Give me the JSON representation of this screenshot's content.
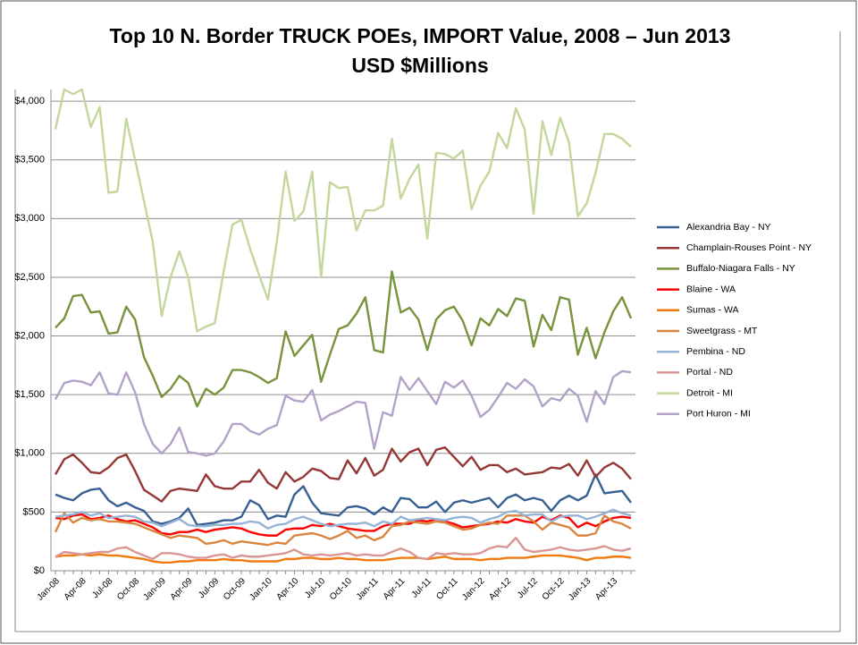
{
  "chart_data": {
    "type": "line",
    "title": "Top 10 N. Border TRUCK POEs,  IMPORT Value, 2008 – Jun 2013",
    "subtitle": "USD $Millions",
    "categories": [
      "Jan-08",
      null,
      null,
      "Apr-08",
      null,
      null,
      "Jul-08",
      null,
      null,
      "Oct-08",
      null,
      null,
      "Jan-09",
      null,
      null,
      "Apr-09",
      null,
      null,
      "Jul-09",
      null,
      null,
      "Oct-09",
      null,
      null,
      "Jan-10",
      null,
      null,
      "Apr-10",
      null,
      null,
      "Jul-10",
      null,
      null,
      "Oct-10",
      null,
      null,
      "Jan-11",
      null,
      null,
      "Apr-11",
      null,
      null,
      "Jul-11",
      null,
      null,
      "Oct-11",
      null,
      null,
      "Jan-12",
      null,
      null,
      "Apr-12",
      null,
      null,
      "Jul-12",
      null,
      null,
      "Oct-12",
      null,
      null,
      "Jan-13",
      null,
      null,
      "Apr-13",
      null,
      null
    ],
    "ylim": [
      0,
      4100
    ],
    "yticks": [
      {
        "value": 0,
        "label": "$0"
      },
      {
        "value": 500,
        "label": "$500"
      },
      {
        "value": 1000,
        "label": "$1,000"
      },
      {
        "value": 1500,
        "label": "$1,500"
      },
      {
        "value": 2000,
        "label": "$2,000"
      },
      {
        "value": 2500,
        "label": "$2,500"
      },
      {
        "value": 3000,
        "label": "$3,000"
      },
      {
        "value": 3500,
        "label": "$3,500"
      },
      {
        "value": 4000,
        "label": "$4,000"
      }
    ],
    "grid": true,
    "legend": "right",
    "series": [
      {
        "name": "Alexandria Bay - NY",
        "color": "#376092",
        "values": [
          650,
          620,
          600,
          660,
          690,
          700,
          600,
          550,
          580,
          540,
          510,
          420,
          400,
          420,
          450,
          530,
          390,
          400,
          410,
          430,
          430,
          460,
          600,
          560,
          440,
          470,
          460,
          650,
          720,
          580,
          490,
          480,
          470,
          540,
          550,
          530,
          480,
          540,
          500,
          620,
          610,
          540,
          540,
          590,
          500,
          580,
          600,
          580,
          600,
          620,
          540,
          620,
          650,
          600,
          620,
          600,
          510,
          600,
          640,
          600,
          640,
          820,
          660,
          670,
          680,
          580
        ]
      },
      {
        "name": "Champlain-Rouses Point - NY",
        "color": "#953735",
        "values": [
          820,
          950,
          990,
          920,
          840,
          830,
          880,
          960,
          990,
          850,
          690,
          640,
          590,
          680,
          700,
          690,
          680,
          820,
          720,
          700,
          700,
          760,
          760,
          860,
          750,
          700,
          840,
          760,
          800,
          870,
          850,
          790,
          780,
          940,
          830,
          960,
          810,
          860,
          1040,
          930,
          1010,
          1040,
          900,
          1030,
          1050,
          970,
          890,
          970,
          860,
          900,
          900,
          840,
          870,
          820,
          830,
          840,
          880,
          870,
          910,
          810,
          940,
          800,
          880,
          920,
          870,
          780
        ]
      },
      {
        "name": "Buffalo-Niagara Falls - NY",
        "color": "#77933c",
        "values": [
          2070,
          2150,
          2340,
          2350,
          2200,
          2210,
          2020,
          2030,
          2250,
          2140,
          1820,
          1660,
          1480,
          1550,
          1660,
          1600,
          1400,
          1550,
          1500,
          1560,
          1710,
          1710,
          1690,
          1650,
          1600,
          1640,
          2040,
          1830,
          1920,
          2010,
          1610,
          1840,
          2060,
          2090,
          2190,
          2330,
          1880,
          1860,
          2550,
          2200,
          2240,
          2140,
          1880,
          2140,
          2220,
          2250,
          2130,
          1920,
          2150,
          2090,
          2230,
          2170,
          2320,
          2300,
          1910,
          2180,
          2050,
          2330,
          2310,
          1840,
          2070,
          1810,
          2030,
          2210,
          2330,
          2150
        ]
      },
      {
        "name": "Blaine - WA",
        "color": "#ff0000",
        "values": [
          450,
          440,
          470,
          480,
          440,
          450,
          470,
          440,
          420,
          430,
          400,
          370,
          320,
          310,
          330,
          330,
          350,
          330,
          350,
          360,
          370,
          360,
          330,
          310,
          300,
          300,
          350,
          360,
          360,
          390,
          380,
          400,
          380,
          360,
          350,
          340,
          340,
          380,
          400,
          400,
          400,
          430,
          420,
          440,
          420,
          400,
          370,
          380,
          390,
          400,
          420,
          410,
          440,
          420,
          410,
          460,
          430,
          470,
          450,
          370,
          410,
          380,
          420,
          450,
          460,
          450
        ]
      },
      {
        "name": "Sumas - WA",
        "color": "#f07a10",
        "values": [
          120,
          130,
          130,
          140,
          130,
          140,
          130,
          130,
          120,
          110,
          100,
          80,
          70,
          70,
          80,
          80,
          90,
          90,
          90,
          100,
          90,
          90,
          80,
          80,
          80,
          80,
          100,
          100,
          110,
          110,
          100,
          100,
          110,
          100,
          100,
          90,
          90,
          90,
          100,
          110,
          110,
          110,
          100,
          110,
          120,
          100,
          100,
          100,
          90,
          100,
          100,
          110,
          110,
          110,
          120,
          130,
          130,
          130,
          120,
          110,
          90,
          110,
          110,
          120,
          120,
          110
        ]
      },
      {
        "name": "Sweetgrass - MT",
        "color": "#d9843f",
        "values": [
          330,
          490,
          410,
          450,
          430,
          440,
          420,
          420,
          410,
          400,
          370,
          340,
          310,
          280,
          300,
          290,
          280,
          230,
          240,
          260,
          230,
          250,
          240,
          230,
          220,
          240,
          230,
          300,
          310,
          320,
          300,
          270,
          300,
          340,
          280,
          300,
          260,
          290,
          380,
          390,
          420,
          410,
          400,
          420,
          410,
          380,
          350,
          360,
          390,
          410,
          400,
          470,
          470,
          470,
          420,
          350,
          410,
          390,
          370,
          300,
          300,
          320,
          470,
          420,
          400,
          360
        ]
      },
      {
        "name": "Pembina - ND",
        "color": "#95b3d7",
        "values": [
          460,
          470,
          480,
          500,
          470,
          490,
          450,
          460,
          470,
          460,
          420,
          410,
          380,
          410,
          440,
          390,
          380,
          380,
          390,
          390,
          400,
          400,
          420,
          410,
          360,
          390,
          400,
          440,
          460,
          430,
          400,
          380,
          390,
          400,
          400,
          410,
          380,
          420,
          400,
          460,
          430,
          440,
          450,
          440,
          430,
          450,
          460,
          450,
          410,
          440,
          460,
          500,
          510,
          470,
          480,
          480,
          420,
          460,
          470,
          470,
          440,
          460,
          490,
          520,
          490,
          470
        ]
      },
      {
        "name": "Portal - ND",
        "color": "#d99694",
        "values": [
          120,
          160,
          150,
          140,
          150,
          160,
          160,
          190,
          200,
          160,
          130,
          100,
          150,
          150,
          140,
          120,
          110,
          110,
          130,
          140,
          110,
          130,
          120,
          120,
          130,
          140,
          150,
          180,
          140,
          130,
          140,
          130,
          140,
          150,
          130,
          140,
          130,
          130,
          160,
          190,
          160,
          110,
          100,
          150,
          140,
          150,
          140,
          140,
          150,
          190,
          210,
          200,
          280,
          180,
          160,
          170,
          180,
          200,
          180,
          170,
          180,
          190,
          210,
          180,
          170,
          190
        ]
      },
      {
        "name": "Detroit - MI",
        "color": "#c3d69b",
        "values": [
          3760,
          4100,
          4060,
          4100,
          3780,
          3950,
          3220,
          3230,
          3850,
          3500,
          3150,
          2800,
          2170,
          2500,
          2720,
          2500,
          2040,
          2080,
          2110,
          2550,
          2950,
          2990,
          2740,
          2520,
          2310,
          2800,
          3400,
          2980,
          3060,
          3400,
          2500,
          3310,
          3260,
          3270,
          2900,
          3070,
          3070,
          3110,
          3680,
          3170,
          3340,
          3460,
          2830,
          3560,
          3550,
          3510,
          3580,
          3080,
          3280,
          3400,
          3730,
          3600,
          3940,
          3760,
          3040,
          3830,
          3540,
          3860,
          3650,
          3020,
          3130,
          3390,
          3720,
          3720,
          3680,
          3610
        ]
      },
      {
        "name": "Port Huron - MI",
        "color": "#b3a2c7",
        "values": [
          1460,
          1600,
          1620,
          1610,
          1580,
          1690,
          1510,
          1500,
          1690,
          1520,
          1250,
          1080,
          1000,
          1080,
          1220,
          1010,
          1000,
          980,
          1000,
          1100,
          1250,
          1250,
          1190,
          1160,
          1210,
          1240,
          1490,
          1450,
          1440,
          1540,
          1280,
          1330,
          1360,
          1400,
          1440,
          1430,
          1040,
          1350,
          1320,
          1650,
          1540,
          1640,
          1530,
          1420,
          1610,
          1560,
          1620,
          1490,
          1310,
          1370,
          1480,
          1600,
          1550,
          1630,
          1570,
          1400,
          1470,
          1450,
          1550,
          1490,
          1270,
          1530,
          1420,
          1650,
          1700,
          1690
        ]
      }
    ]
  }
}
